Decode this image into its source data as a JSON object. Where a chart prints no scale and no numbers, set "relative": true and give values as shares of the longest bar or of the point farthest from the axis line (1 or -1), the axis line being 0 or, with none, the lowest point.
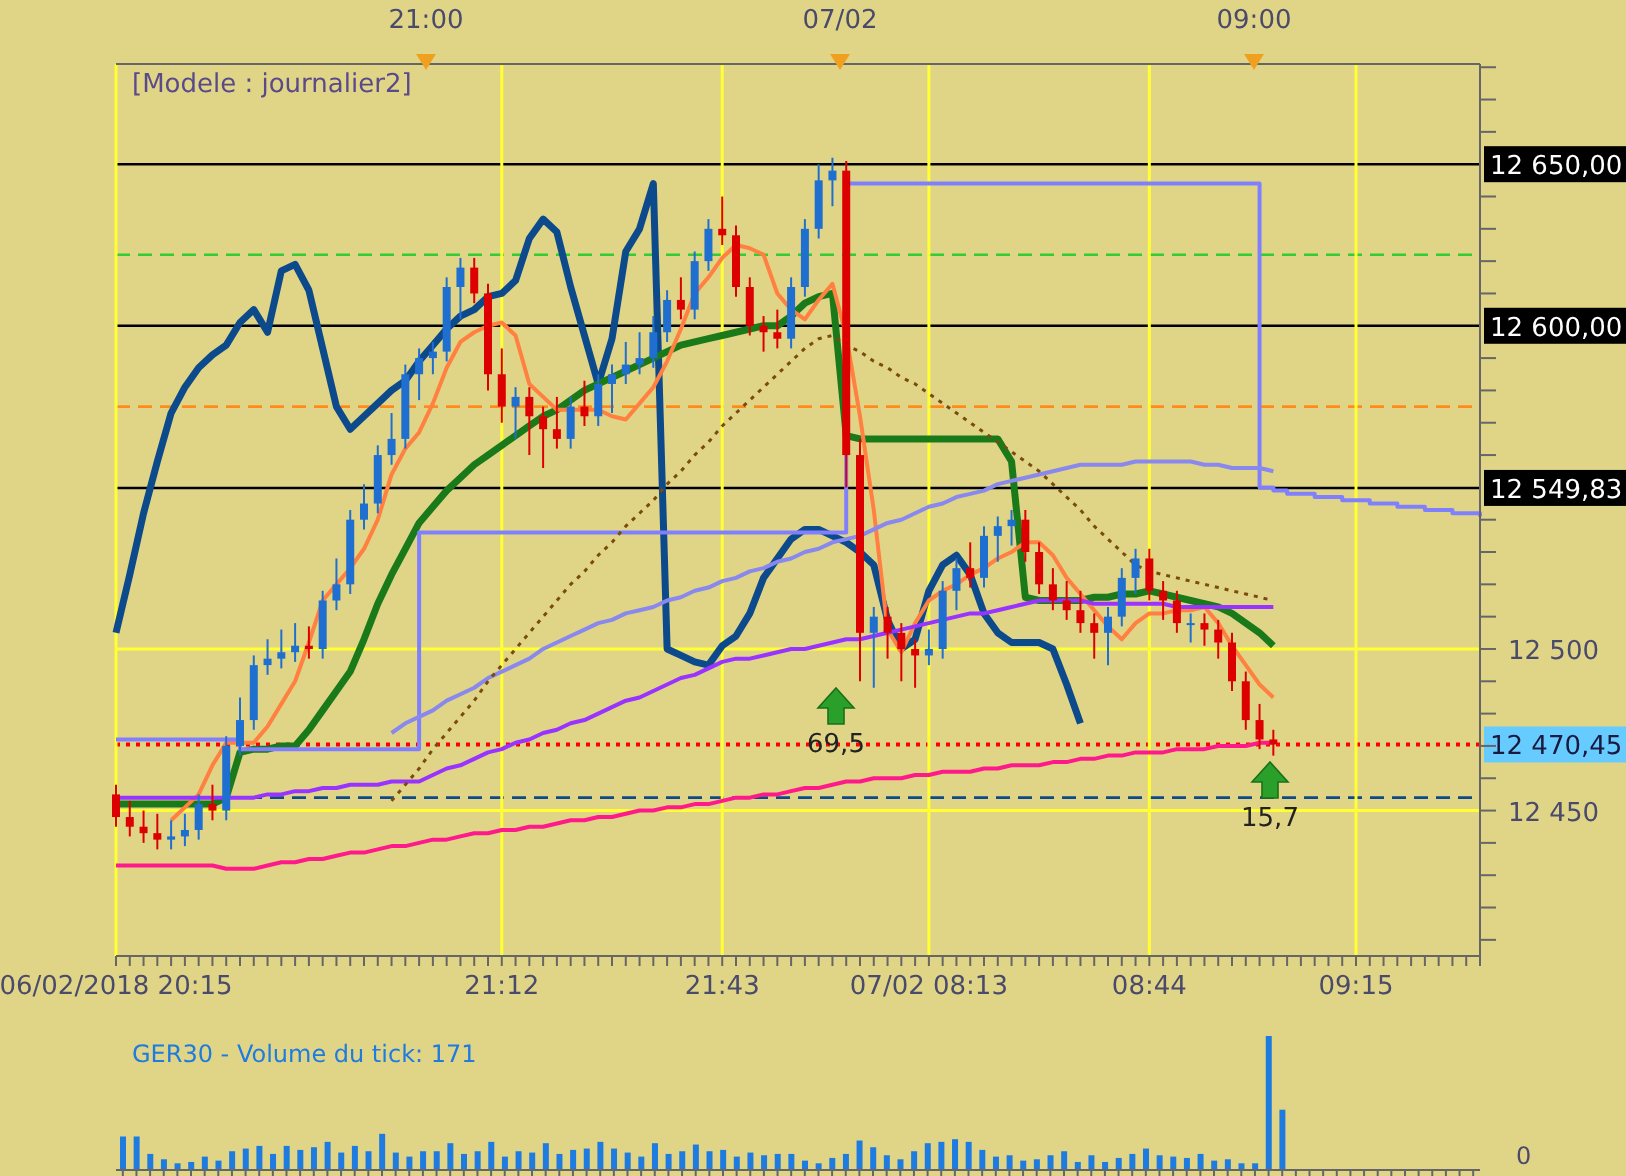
{
  "chart_data": [
    {
      "type": "candlestick",
      "categories": [
        "06/02/2018 20:15",
        null,
        null,
        null,
        null,
        null,
        null,
        null,
        null,
        null,
        null,
        null,
        null,
        null,
        null,
        null,
        null,
        null,
        null,
        null,
        null,
        null,
        null,
        null,
        null,
        null,
        null,
        null,
        "21:12",
        null,
        null,
        null,
        null,
        null,
        null,
        null,
        null,
        null,
        null,
        null,
        null,
        null,
        null,
        null,
        "21:43",
        null,
        null,
        null,
        null,
        null,
        null,
        null,
        null,
        null,
        null,
        null,
        null,
        null,
        null,
        "07/02 08:13",
        null,
        null,
        null,
        null,
        null,
        null,
        null,
        null,
        null,
        null,
        null,
        null,
        null,
        null,
        null,
        "08:44",
        null,
        null,
        null,
        null,
        null,
        null,
        null,
        null,
        null,
        null,
        null,
        null,
        null,
        null,
        "09:15",
        null,
        null,
        null,
        null,
        null,
        null,
        null,
        null,
        null
      ],
      "ohlc": [
        [
          12455,
          12458,
          12445,
          12448
        ],
        [
          12448,
          12453,
          12442,
          12445
        ],
        [
          12445,
          12450,
          12440,
          12443
        ],
        [
          12443,
          12449,
          12438,
          12441
        ],
        [
          12441,
          12447,
          12438,
          12442
        ],
        [
          12442,
          12449,
          12439,
          12444
        ],
        [
          12444,
          12455,
          12441,
          12452
        ],
        [
          12452,
          12458,
          12447,
          12450
        ],
        [
          12450,
          12473,
          12447,
          12470
        ],
        [
          12470,
          12485,
          12467,
          12478
        ],
        [
          12478,
          12498,
          12475,
          12495
        ],
        [
          12495,
          12503,
          12492,
          12497
        ],
        [
          12497,
          12506,
          12494,
          12499
        ],
        [
          12499,
          12508,
          12496,
          12501
        ],
        [
          12501,
          12507,
          12497,
          12500
        ],
        [
          12500,
          12518,
          12497,
          12515
        ],
        [
          12515,
          12528,
          12512,
          12520
        ],
        [
          12520,
          12543,
          12517,
          12540
        ],
        [
          12540,
          12551,
          12537,
          12545
        ],
        [
          12545,
          12563,
          12542,
          12560
        ],
        [
          12560,
          12573,
          12557,
          12565
        ],
        [
          12565,
          12588,
          12562,
          12585
        ],
        [
          12585,
          12593,
          12577,
          12590
        ],
        [
          12590,
          12595,
          12585,
          12592
        ],
        [
          12592,
          12615,
          12589,
          12612
        ],
        [
          12612,
          12621,
          12602,
          12618
        ],
        [
          12618,
          12621,
          12607,
          12610
        ],
        [
          12610,
          12613,
          12580,
          12585
        ],
        [
          12585,
          12593,
          12570,
          12575
        ],
        [
          12575,
          12581,
          12565,
          12578
        ],
        [
          12578,
          12581,
          12560,
          12572
        ],
        [
          12572,
          12575,
          12556,
          12568
        ],
        [
          12568,
          12578,
          12562,
          12565
        ],
        [
          12565,
          12578,
          12562,
          12575
        ],
        [
          12575,
          12583,
          12569,
          12572
        ],
        [
          12572,
          12585,
          12569,
          12582
        ],
        [
          12582,
          12588,
          12573,
          12585
        ],
        [
          12585,
          12595,
          12582,
          12588
        ],
        [
          12588,
          12598,
          12585,
          12590
        ],
        [
          12590,
          12603,
          12587,
          12598
        ],
        [
          12598,
          12611,
          12595,
          12608
        ],
        [
          12608,
          12615,
          12602,
          12605
        ],
        [
          12605,
          12623,
          12602,
          12620
        ],
        [
          12620,
          12633,
          12617,
          12630
        ],
        [
          12630,
          12640,
          12625,
          12628
        ],
        [
          12628,
          12631,
          12609,
          12612
        ],
        [
          12612,
          12615,
          12597,
          12600
        ],
        [
          12600,
          12603,
          12592,
          12598
        ],
        [
          12598,
          12605,
          12593,
          12596
        ],
        [
          12596,
          12615,
          12593,
          12612
        ],
        [
          12612,
          12633,
          12609,
          12630
        ],
        [
          12630,
          12650,
          12627,
          12645
        ],
        [
          12645,
          12652,
          12637,
          12648
        ],
        [
          12648,
          12651,
          12550,
          12560
        ],
        [
          12560,
          12565,
          12490,
          12505
        ],
        [
          12505,
          12513,
          12488,
          12510
        ],
        [
          12510,
          12513,
          12497,
          12505
        ],
        [
          12505,
          12508,
          12490,
          12500
        ],
        [
          12500,
          12503,
          12488,
          12498
        ],
        [
          12498,
          12506,
          12495,
          12500
        ],
        [
          12500,
          12521,
          12497,
          12518
        ],
        [
          12518,
          12528,
          12512,
          12525
        ],
        [
          12525,
          12533,
          12519,
          12522
        ],
        [
          12522,
          12538,
          12519,
          12535
        ],
        [
          12535,
          12541,
          12527,
          12538
        ],
        [
          12538,
          12543,
          12532,
          12540
        ],
        [
          12540,
          12543,
          12527,
          12530
        ],
        [
          12530,
          12533,
          12517,
          12520
        ],
        [
          12520,
          12525,
          12512,
          12515
        ],
        [
          12515,
          12521,
          12509,
          12512
        ],
        [
          12512,
          12518,
          12505,
          12508
        ],
        [
          12508,
          12511,
          12497,
          12505
        ],
        [
          12505,
          12513,
          12495,
          12510
        ],
        [
          12510,
          12525,
          12507,
          12522
        ],
        [
          12522,
          12531,
          12517,
          12528
        ],
        [
          12528,
          12531,
          12515,
          12518
        ],
        [
          12518,
          12521,
          12509,
          12515
        ],
        [
          12515,
          12518,
          12505,
          12508
        ],
        [
          12508,
          12511,
          12502,
          12508
        ],
        [
          12508,
          12511,
          12501,
          12506
        ],
        [
          12506,
          12509,
          12497,
          12502
        ],
        [
          12502,
          12505,
          12487,
          12490
        ],
        [
          12490,
          12493,
          12475,
          12478
        ],
        [
          12478,
          12483,
          12469,
          12472
        ],
        [
          12472,
          12475,
          12467,
          12470.45
        ],
        null,
        null,
        null,
        null,
        null,
        null,
        null,
        null,
        null,
        null,
        null,
        null,
        null,
        null,
        null
      ],
      "colors": [
        "#dd0000",
        "#dd0000",
        "#dd0000",
        "#dd0000",
        "#1e6fd0",
        "#1e6fd0",
        "#1e6fd0",
        "#dd0000",
        "#1e6fd0",
        "#1e6fd0",
        "#1e6fd0",
        "#1e6fd0",
        "#1e6fd0",
        "#1e6fd0",
        "#dd0000",
        "#1e6fd0",
        "#1e6fd0",
        "#1e6fd0",
        "#1e6fd0",
        "#1e6fd0",
        "#1e6fd0",
        "#1e6fd0",
        "#1e6fd0",
        "#1e6fd0",
        "#1e6fd0",
        "#1e6fd0",
        "#dd0000",
        "#dd0000",
        "#dd0000",
        "#1e6fd0",
        "#dd0000",
        "#dd0000",
        "#dd0000",
        "#1e6fd0",
        "#dd0000",
        "#1e6fd0",
        "#1e6fd0",
        "#1e6fd0",
        "#1e6fd0",
        "#1e6fd0",
        "#1e6fd0",
        "#dd0000",
        "#1e6fd0",
        "#1e6fd0",
        "#dd0000",
        "#dd0000",
        "#dd0000",
        "#dd0000",
        "#dd0000",
        "#1e6fd0",
        "#1e6fd0",
        "#1e6fd0",
        "#1e6fd0",
        "#dd0000",
        "#dd0000",
        "#1e6fd0",
        "#dd0000",
        "#dd0000",
        "#dd0000",
        "#1e6fd0",
        "#1e6fd0",
        "#1e6fd0",
        "#dd0000",
        "#1e6fd0",
        "#1e6fd0",
        "#1e6fd0",
        "#dd0000",
        "#dd0000",
        "#dd0000",
        "#dd0000",
        "#dd0000",
        "#dd0000",
        "#1e6fd0",
        "#1e6fd0",
        "#1e6fd0",
        "#dd0000",
        "#dd0000",
        "#dd0000",
        "#1e6fd0",
        "#dd0000",
        "#dd0000",
        "#dd0000",
        "#dd0000",
        "#dd0000",
        "#dd0000",
        null,
        null,
        null,
        null,
        null,
        null,
        null,
        null,
        null,
        null,
        null,
        null,
        null,
        null,
        null
      ],
      "series": [
        {
          "type": "line",
          "color": "#0d4a8c",
          "values": [
            12505,
            12523,
            12542,
            12558,
            12573,
            12581,
            12587,
            12591,
            12594,
            12601,
            12605,
            12598,
            12617,
            12619,
            12611,
            12593,
            12575,
            12568,
            12572,
            12576,
            12580,
            12583,
            12589,
            12594,
            12599,
            12603,
            12605,
            12609,
            12610,
            12614,
            12627,
            12633,
            12629,
            12612,
            12597,
            12582,
            12596,
            12623,
            12630,
            12644,
            12500,
            12498,
            12496,
            12495,
            12501,
            12504,
            12511,
            12522,
            12528,
            12534,
            12537,
            12537,
            12535,
            12533,
            12530,
            12526,
            12509,
            12500,
            12503,
            12518,
            12526,
            12529,
            12523,
            12511,
            12505,
            12502,
            12502,
            12502,
            12500,
            12489,
            12477,
            null,
            null,
            null,
            null,
            null,
            null,
            null,
            null,
            null,
            null,
            null,
            null,
            null,
            null,
            null,
            null,
            null,
            null,
            null,
            null,
            null,
            null,
            null,
            null,
            null,
            null,
            null,
            null,
            null
          ]
        },
        {
          "type": "line",
          "color": "#1a7a1a",
          "values": [
            12452,
            12452,
            12452,
            12452,
            12452,
            12452,
            12452,
            12452,
            12454,
            12468,
            12469,
            12469,
            12470,
            12470,
            12475,
            12481,
            12487,
            12493,
            12503,
            12514,
            12523,
            12531,
            12539,
            12544,
            12549,
            12553,
            12557,
            12560,
            12563,
            12566,
            12569,
            12572,
            12574,
            12577,
            12580,
            12582,
            12584,
            12586,
            12588,
            12590,
            12592,
            12594,
            12595,
            12596,
            12597,
            12598,
            12599,
            12600,
            12600,
            12603,
            12607,
            12609,
            12610,
            12566,
            12565,
            12565,
            12565,
            12565,
            12565,
            12565,
            12565,
            12565,
            12565,
            12565,
            12565,
            12558,
            12516,
            12515,
            12515,
            12515,
            12515,
            12516,
            12516,
            12517,
            12517,
            12518,
            12517,
            12516,
            12515,
            12514,
            12513,
            12511,
            12508,
            12505,
            12501,
            null,
            null,
            null,
            null,
            null,
            null,
            null,
            null,
            null,
            null,
            null,
            null,
            null,
            null,
            null
          ]
        },
        {
          "type": "line",
          "color": "#ff8040",
          "values": [
            null,
            null,
            null,
            null,
            12447,
            12451,
            12455,
            12464,
            12471,
            12471,
            12471,
            12476,
            12483,
            12490,
            12502,
            12515,
            12520,
            12525,
            12531,
            12540,
            12554,
            12562,
            12567,
            12576,
            12587,
            12595,
            12598,
            12600,
            12601,
            12597,
            12582,
            12578,
            12574,
            12574,
            12574,
            12574,
            12572,
            12571,
            12576,
            12581,
            12589,
            12599,
            12610,
            12615,
            12621,
            12625,
            12624,
            12622,
            12610,
            12605,
            12602,
            12608,
            12613,
            12597,
            12572,
            12543,
            12506,
            12499,
            12508,
            12515,
            12518,
            12520,
            12523,
            12525,
            12528,
            12530,
            12533,
            12533,
            12529,
            12522,
            12517,
            12512,
            12507,
            12503,
            12508,
            12511,
            12511,
            12512,
            12512,
            12513,
            12508,
            12501,
            12495,
            12489,
            12485,
            null,
            null,
            null,
            null,
            null,
            null,
            null,
            null,
            null,
            null,
            null,
            null,
            null,
            null,
            null
          ]
        },
        {
          "type": "line",
          "color": "#9933ff",
          "values": [
            12454,
            12454,
            12454,
            12454,
            12454,
            12454,
            12454,
            12454,
            12454,
            12454,
            12454,
            12455,
            12455,
            12456,
            12456,
            12457,
            12457,
            12458,
            12458,
            12458,
            12459,
            12459,
            12459,
            12461,
            12463,
            12464,
            12466,
            12468,
            12469,
            12471,
            12472,
            12474,
            12475,
            12477,
            12478,
            12480,
            12482,
            12484,
            12485,
            12487,
            12489,
            12491,
            12492,
            12494,
            12496,
            12497,
            12497,
            12498,
            12499,
            12500,
            12500,
            12501,
            12502,
            12503,
            12503,
            12504,
            12505,
            12506,
            12507,
            12508,
            12509,
            12510,
            12511,
            12511,
            12512,
            12513,
            12514,
            12515,
            12515,
            12515,
            12515,
            12514,
            12514,
            12514,
            12514,
            12514,
            12514,
            12513,
            12513,
            12513,
            12513,
            12513,
            12513,
            12513,
            12513,
            null,
            null,
            null,
            null,
            null,
            null,
            null,
            null,
            null,
            null,
            null,
            null,
            null,
            null,
            null
          ]
        },
        {
          "type": "line",
          "color": "#ff1a8c",
          "values": [
            12433,
            12433,
            12433,
            12433,
            12433,
            12433,
            12433,
            12433,
            12432,
            12432,
            12432,
            12433,
            12434,
            12434,
            12435,
            12435,
            12436,
            12437,
            12437,
            12438,
            12439,
            12439,
            12440,
            12441,
            12441,
            12442,
            12443,
            12443,
            12444,
            12444,
            12445,
            12445,
            12446,
            12447,
            12447,
            12448,
            12448,
            12449,
            12450,
            12450,
            12451,
            12451,
            12452,
            12452,
            12453,
            12454,
            12454,
            12455,
            12455,
            12456,
            12457,
            12457,
            12458,
            12459,
            12459,
            12460,
            12460,
            12460,
            12461,
            12461,
            12462,
            12462,
            12462,
            12463,
            12463,
            12464,
            12464,
            12464,
            12465,
            12465,
            12466,
            12466,
            12467,
            12467,
            12468,
            12468,
            12468,
            12469,
            12469,
            12469,
            12470,
            12470,
            12470,
            12471,
            12471,
            null,
            null,
            null,
            null,
            null,
            null,
            null,
            null,
            null,
            null,
            null,
            null,
            null,
            null,
            null
          ]
        },
        {
          "type": "step",
          "color": "#8080ff",
          "values": [
            12472,
            12472,
            12472,
            12472,
            12472,
            12472,
            12472,
            12472,
            12472,
            12469,
            12469,
            12469,
            12469,
            12469,
            12469,
            12469,
            12469,
            12469,
            12469,
            12469,
            12469,
            12469,
            12536,
            12536,
            12536,
            12536,
            12536,
            12536,
            12536,
            12536,
            12536,
            12536,
            12536,
            12536,
            12536,
            12536,
            12536,
            12536,
            12536,
            12536,
            12536,
            12536,
            12536,
            12536,
            12536,
            12536,
            12536,
            12536,
            12536,
            12536,
            12536,
            12536,
            12536,
            12644,
            12644,
            12644,
            12644,
            12644,
            12644,
            12644,
            12644,
            12644,
            12644,
            12644,
            12644,
            12644,
            12644,
            12644,
            12644,
            12644,
            12644,
            12644,
            12644,
            12644,
            12644,
            12644,
            12644,
            12644,
            12644,
            12644,
            12644,
            12644,
            12644,
            12550,
            12549,
            12548,
            12548,
            12547,
            12547,
            12546,
            12546,
            12545,
            12545,
            12544,
            12544,
            12543,
            12543,
            12542,
            12542,
            12541
          ]
        },
        {
          "type": "line",
          "color": "#8888ee",
          "values": [
            null,
            null,
            null,
            null,
            null,
            null,
            null,
            null,
            null,
            null,
            null,
            null,
            null,
            null,
            null,
            null,
            null,
            null,
            null,
            null,
            12474,
            12477,
            12479,
            12481,
            12484,
            12486,
            12488,
            12491,
            12493,
            12495,
            12497,
            12500,
            12502,
            12504,
            12506,
            12508,
            12509,
            12511,
            12512,
            12513,
            12515,
            12516,
            12518,
            12519,
            12521,
            12522,
            12524,
            12525,
            12527,
            12528,
            12530,
            12531,
            12533,
            12534,
            12535,
            12537,
            12539,
            12540,
            12542,
            12544,
            12545,
            12547,
            12548,
            12549,
            12551,
            12552,
            12553,
            12554,
            12555,
            12556,
            12557,
            12557,
            12557,
            12557,
            12558,
            12558,
            12558,
            12558,
            12558,
            12557,
            12557,
            12556,
            12556,
            12556,
            12555,
            null,
            null,
            null,
            null,
            null,
            null,
            null,
            null,
            null,
            null,
            null,
            null,
            null,
            null,
            null
          ]
        },
        {
          "type": "line",
          "color": "#7a4a10",
          "line_style": "dotted",
          "values": [
            null,
            null,
            null,
            null,
            null,
            null,
            null,
            null,
            null,
            null,
            null,
            null,
            null,
            null,
            null,
            null,
            null,
            null,
            null,
            null,
            12453,
            12458,
            12463,
            12469,
            12474,
            12479,
            12484,
            12490,
            12495,
            12500,
            12505,
            12510,
            12515,
            12520,
            12524,
            12529,
            12533,
            12538,
            12542,
            12546,
            12551,
            12555,
            12560,
            12564,
            12569,
            12573,
            12577,
            12581,
            12585,
            12589,
            12593,
            12596,
            12597,
            12594,
            12592,
            12589,
            12587,
            12584,
            12582,
            12579,
            12576,
            12573,
            12570,
            12567,
            12564,
            12561,
            12558,
            12555,
            12551,
            12547,
            12543,
            12538,
            12534,
            12530,
            12526,
            12524,
            12523,
            12522,
            12521,
            12520,
            12519,
            12518,
            12517,
            12516,
            12515,
            null,
            null,
            null,
            null,
            null,
            null,
            null,
            null,
            null,
            null,
            null,
            null,
            null,
            null,
            null
          ]
        }
      ],
      "ylim": [
        12405,
        12681
      ],
      "yticks": [
        {
          "value": 12410,
          "label": null
        },
        {
          "value": 12420,
          "label": null
        },
        {
          "value": 12430,
          "label": null
        },
        {
          "value": 12440,
          "label": null
        },
        {
          "value": 12450,
          "label": "12 450"
        },
        {
          "value": 12460,
          "label": null
        },
        {
          "value": 12470,
          "label": null
        },
        {
          "value": 12480,
          "label": null
        },
        {
          "value": 12490,
          "label": null
        },
        {
          "value": 12500,
          "label": "12 500"
        },
        {
          "value": 12510,
          "label": null
        },
        {
          "value": 12520,
          "label": null
        },
        {
          "value": 12530,
          "label": null
        },
        {
          "value": 12540,
          "label": null
        },
        {
          "value": 12560,
          "label": null
        },
        {
          "value": 12570,
          "label": null
        },
        {
          "value": 12580,
          "label": null
        },
        {
          "value": 12590,
          "label": null
        },
        {
          "value": 12610,
          "label": null
        },
        {
          "value": 12620,
          "label": null
        },
        {
          "value": 12630,
          "label": null
        },
        {
          "value": 12640,
          "label": null
        },
        {
          "value": 12660,
          "label": null
        },
        {
          "value": 12670,
          "label": null
        },
        {
          "value": 12680,
          "label": null
        }
      ],
      "ref_lines": [
        {
          "axis": "y",
          "value": 12650,
          "label": "12 650,00",
          "color": "#000000",
          "line_style": "solid"
        },
        {
          "axis": "y",
          "value": 12600,
          "label": "12 600,00",
          "color": "#000000",
          "line_style": "solid"
        },
        {
          "axis": "y",
          "value": 12549.83,
          "label": "12 549,83",
          "color": "#000000",
          "line_style": "solid"
        },
        {
          "axis": "y",
          "value": 12470.45,
          "label": "12 470,45",
          "color": "#ff0000",
          "line_style": "dotted"
        },
        {
          "axis": "y",
          "value": 12622,
          "color": "#33cc33",
          "line_style": "dashed"
        },
        {
          "axis": "y",
          "value": 12575,
          "color": "#ff8c1a",
          "line_style": "dashed"
        },
        {
          "axis": "y",
          "value": 12454,
          "color": "#0d4a8c",
          "line_style": "dashed"
        }
      ],
      "annotations": [
        "[Modele : journalier2]",
        "69,5",
        "15,7",
        "21:00",
        "07/02",
        "09:00"
      ],
      "grid": true
    },
    {
      "type": "bar",
      "relative": true,
      "color": "#1e7be0",
      "categories": [
        null,
        null,
        null,
        null,
        null,
        null,
        null,
        null,
        null,
        null,
        null,
        null,
        null,
        null,
        null,
        null,
        null,
        null,
        null,
        null,
        null,
        null,
        null,
        null,
        null,
        null,
        null,
        null,
        null,
        null,
        null,
        null,
        null,
        null,
        null,
        null,
        null,
        null,
        null,
        null,
        null,
        null,
        null,
        null,
        null,
        null,
        null,
        null,
        null,
        null,
        null,
        null,
        null,
        null,
        null,
        null,
        null,
        null,
        null,
        null,
        null,
        null,
        null,
        null,
        null,
        null,
        null,
        null,
        null,
        null,
        null,
        null,
        null,
        null,
        null,
        null,
        null,
        null,
        null,
        null,
        null,
        null,
        null,
        null,
        null,
        null,
        null,
        null,
        null,
        null,
        null,
        null,
        null,
        null,
        null,
        null,
        null,
        null,
        null,
        null
      ],
      "values": [
        0.25,
        0.25,
        0.12,
        0.08,
        0.05,
        0.06,
        0.1,
        0.07,
        0.14,
        0.16,
        0.18,
        0.12,
        0.18,
        0.15,
        0.17,
        0.21,
        0.13,
        0.18,
        0.14,
        0.27,
        0.13,
        0.1,
        0.14,
        0.14,
        0.2,
        0.12,
        0.14,
        0.21,
        0.1,
        0.14,
        0.13,
        0.2,
        0.12,
        0.15,
        0.16,
        0.21,
        0.16,
        0.13,
        0.1,
        0.2,
        0.12,
        0.14,
        0.19,
        0.14,
        0.15,
        0.1,
        0.13,
        0.11,
        0.12,
        0.12,
        0.07,
        0.05,
        0.09,
        0.12,
        0.22,
        0.17,
        0.11,
        0.08,
        0.14,
        0.2,
        0.21,
        0.23,
        0.21,
        0.15,
        0.1,
        0.11,
        0.07,
        0.08,
        0.11,
        0.14,
        0.06,
        0.11,
        0.06,
        0.09,
        0.12,
        0.16,
        0.11,
        0.1,
        0.09,
        0.12,
        0.07,
        0.08,
        0.05,
        0.05,
        1,
        0.45,
        null,
        null,
        null,
        null,
        null,
        null,
        null,
        null,
        null,
        null,
        null,
        null,
        null,
        null
      ],
      "annotations": [
        "GER30 - Volume du tick: 171",
        "0"
      ]
    }
  ]
}
